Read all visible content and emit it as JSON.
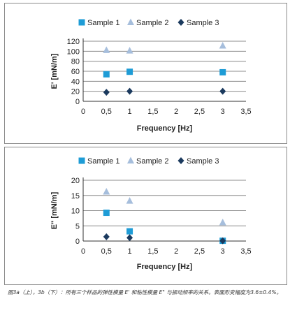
{
  "colors": {
    "sample1": "#1e9cd6",
    "sample2": "#a6bedc",
    "sample3": "#1b3a5e",
    "grid": "#8c8c8c",
    "axis": "#333333"
  },
  "markers": {
    "sample1": "square",
    "sample2": "triangle",
    "sample3": "diamond"
  },
  "chart_data": [
    {
      "id": "a",
      "type": "scatter",
      "title": "",
      "xlabel": "Frequency [Hz]",
      "ylabel": "E' [mN/m]",
      "xlim": [
        0,
        3.5
      ],
      "ylim": [
        0,
        120
      ],
      "grid": "horizontal",
      "legend_position": "top",
      "xticks": [
        "0",
        "0,5",
        "1",
        "1,5",
        "2",
        "2,5",
        "3",
        "3,5"
      ],
      "yticks": [
        "0",
        "20",
        "40",
        "60",
        "80",
        "100",
        "120"
      ],
      "series": [
        {
          "name": "Sample 1",
          "marker": "square",
          "x": [
            0.5,
            1,
            3
          ],
          "y": [
            54,
            59,
            58
          ]
        },
        {
          "name": "Sample 2",
          "marker": "triangle",
          "x": [
            0.5,
            1,
            3
          ],
          "y": [
            102,
            101,
            111
          ]
        },
        {
          "name": "Sample 3",
          "marker": "diamond",
          "x": [
            0.5,
            1,
            3
          ],
          "y": [
            18,
            20,
            20
          ]
        }
      ]
    },
    {
      "id": "b",
      "type": "scatter",
      "title": "",
      "xlabel": "Frequency [Hz]",
      "ylabel": "E\" [mN/m]",
      "xlim": [
        0,
        3.5
      ],
      "ylim": [
        0,
        20
      ],
      "grid": "horizontal",
      "legend_position": "top",
      "xticks": [
        "0",
        "0,5",
        "1",
        "1,5",
        "2",
        "2,5",
        "3",
        "3,5"
      ],
      "yticks": [
        "0",
        "5",
        "10",
        "15",
        "20"
      ],
      "series": [
        {
          "name": "Sample 1",
          "marker": "square",
          "x": [
            0.5,
            1,
            3
          ],
          "y": [
            9.3,
            3.2,
            0.1
          ]
        },
        {
          "name": "Sample 2",
          "marker": "triangle",
          "x": [
            0.5,
            1,
            3
          ],
          "y": [
            16.2,
            13.2,
            6.1
          ]
        },
        {
          "name": "Sample 3",
          "marker": "diamond",
          "x": [
            0.5,
            1,
            3
          ],
          "y": [
            1.4,
            1.1,
            0.1
          ]
        }
      ]
    }
  ],
  "caption": "图3a（上），3b（下）：所有三个样品的弹性模量 E' 和粘性模量 E\" 与振动频率的关系。表面形变幅度为3.6±0.4%。"
}
